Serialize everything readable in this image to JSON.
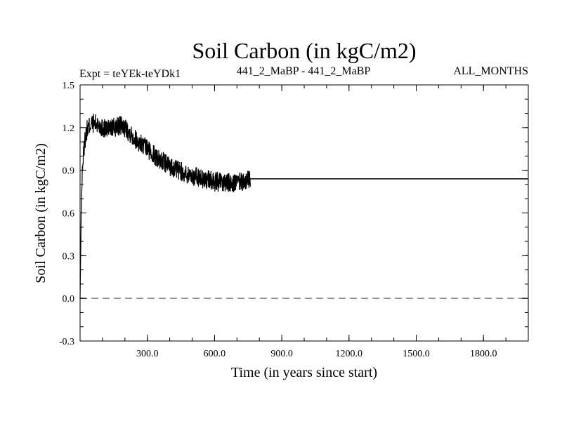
{
  "chart_data": {
    "type": "line",
    "title": "Soil Carbon (in kgC/m2)",
    "subtitle_left": "Expt = teYEk-teYDk1",
    "subtitle_center": "441_2_MaBP - 441_2_MaBP",
    "subtitle_right": "ALL_MONTHS",
    "xlabel": "Time (in years since start)",
    "ylabel": "Soil Carbon (in kgC/m2)",
    "xlim": [
      0,
      2000
    ],
    "ylim": [
      -0.3,
      1.5
    ],
    "x_ticks": [
      300,
      600,
      900,
      1200,
      1500,
      1800
    ],
    "x_tick_labels": [
      "300.0",
      "600.0",
      "900.0",
      "1200.0",
      "1500.0",
      "1800.0"
    ],
    "y_ticks": [
      -0.3,
      0.0,
      0.3,
      0.6,
      0.9,
      1.2,
      1.5
    ],
    "y_tick_labels": [
      "-0.3",
      "0.0",
      "0.3",
      "0.6",
      "0.9",
      "1.2",
      "1.5"
    ],
    "reference_line": {
      "y": 0.0,
      "style": "dashed",
      "color": "#808080"
    },
    "series": [
      {
        "color": "#000000",
        "x": [
          0,
          5,
          10,
          20,
          30,
          45,
          60,
          80,
          100,
          120,
          150,
          180,
          200,
          230,
          260,
          300,
          350,
          400,
          450,
          500,
          550,
          600,
          650,
          700,
          750,
          760
        ],
        "y": [
          0.0,
          0.6,
          0.9,
          1.1,
          1.18,
          1.22,
          1.23,
          1.22,
          1.2,
          1.19,
          1.2,
          1.21,
          1.2,
          1.15,
          1.1,
          1.05,
          0.98,
          0.93,
          0.89,
          0.86,
          0.84,
          0.82,
          0.81,
          0.81,
          0.83,
          0.84
        ],
        "band_halfwidth": 0.07
      },
      {
        "color": "#000000",
        "x": [
          760,
          2000
        ],
        "y": [
          0.84,
          0.84
        ]
      }
    ],
    "grid": false,
    "legend": "none"
  }
}
